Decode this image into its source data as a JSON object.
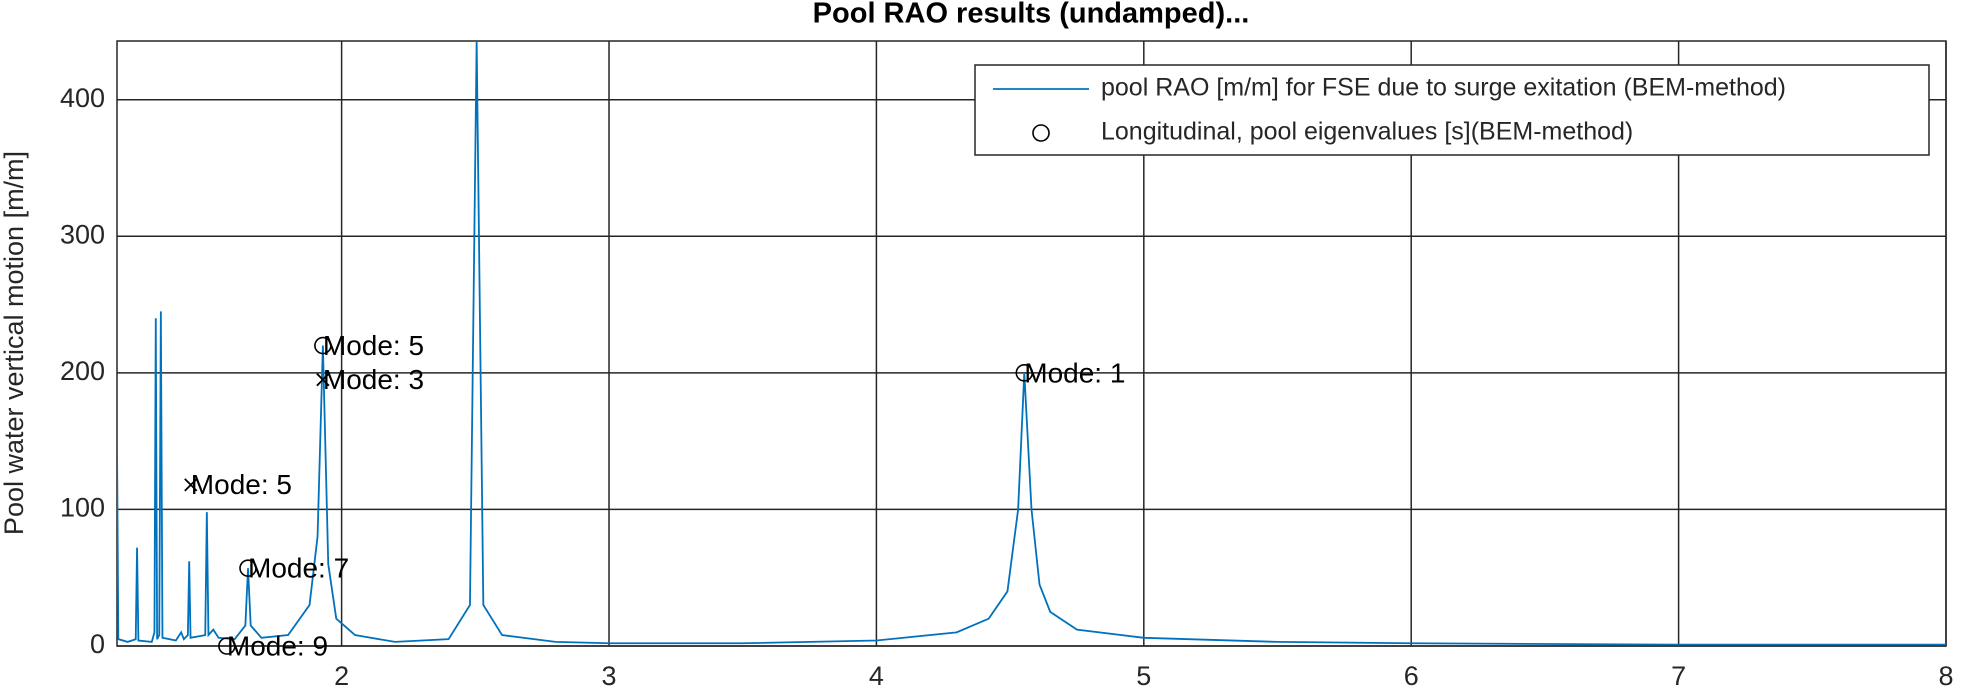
{
  "chart_data": {
    "type": "line",
    "title": "Pool RAO results (undamped)...",
    "ylabel": "Pool water vertical motion [m/m]",
    "xlim": [
      1.16,
      8
    ],
    "ylim": [
      0,
      443
    ],
    "xticks": [
      2,
      3,
      4,
      5,
      6,
      7,
      8
    ],
    "yticks": [
      0,
      100,
      200,
      300,
      400
    ],
    "grid": true,
    "legend": "upper right",
    "series": [
      {
        "name": "pool RAO [m/m] for FSE due to surge exitation (BEM-method)",
        "color": "#0072bd",
        "x": [
          1.16,
          1.165,
          1.2,
          1.23,
          1.235,
          1.24,
          1.29,
          1.3,
          1.305,
          1.31,
          1.318,
          1.324,
          1.33,
          1.38,
          1.4,
          1.41,
          1.425,
          1.43,
          1.435,
          1.49,
          1.496,
          1.502,
          1.52,
          1.54,
          1.6,
          1.64,
          1.65,
          1.66,
          1.7,
          1.8,
          1.88,
          1.91,
          1.93,
          1.95,
          1.98,
          2.05,
          2.2,
          2.4,
          2.48,
          2.505,
          2.53,
          2.6,
          2.8,
          3.0,
          3.5,
          4.0,
          4.3,
          4.42,
          4.49,
          4.53,
          4.553,
          4.58,
          4.61,
          4.65,
          4.75,
          5.0,
          5.5,
          6.0,
          7.0,
          8.0
        ],
        "values": [
          148,
          5,
          3,
          5,
          72,
          4,
          3,
          10,
          240,
          5,
          8,
          245,
          6,
          4,
          10,
          5,
          8,
          62,
          6,
          8,
          98,
          8,
          12,
          6,
          5,
          15,
          57,
          15,
          6,
          8,
          30,
          80,
          220,
          60,
          20,
          8,
          3,
          5,
          30,
          443,
          30,
          8,
          3,
          2,
          2,
          4,
          10,
          20,
          40,
          100,
          200,
          100,
          45,
          25,
          12,
          6,
          3,
          2,
          1,
          1
        ]
      },
      {
        "name": "Longitudinal, pool eigenvalues [s](BEM-method)",
        "color": "#000000",
        "marker": "o",
        "x": [
          1.93,
          4.553,
          1.65,
          1.571
        ],
        "values": [
          220,
          200,
          57,
          0
        ],
        "labels": [
          "Mode: 5",
          "Mode: 1",
          "Mode: 7",
          "Mode: 9"
        ]
      },
      {
        "color": "#000000",
        "marker": "x",
        "x": [
          1.93,
          1.436
        ],
        "values": [
          195,
          118
        ],
        "labels": [
          "Mode: 3",
          "Mode: 5"
        ]
      }
    ]
  }
}
